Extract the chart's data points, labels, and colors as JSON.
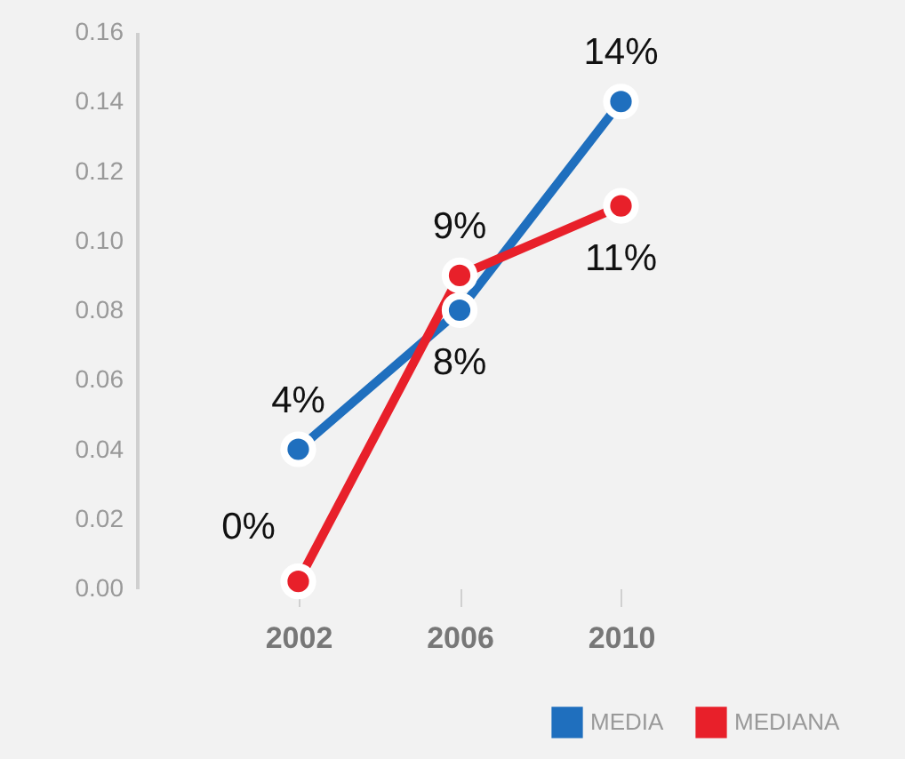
{
  "chart_data": {
    "type": "line",
    "categories": [
      "2002",
      "2006",
      "2010"
    ],
    "series": [
      {
        "name": "MEDIA",
        "color": "#1f6fbe",
        "values": [
          0.04,
          0.08,
          0.14
        ],
        "value_labels": [
          "4%",
          "8%",
          "14%"
        ]
      },
      {
        "name": "MEDIANA",
        "color": "#e8202a",
        "values": [
          0.002,
          0.09,
          0.11
        ],
        "value_labels": [
          "0%",
          "9%",
          "11%"
        ]
      }
    ],
    "ylim": [
      0,
      0.16
    ],
    "yticks": [
      {
        "value": 0,
        "label": "0.00"
      },
      {
        "value": 0.02,
        "label": "0.02"
      },
      {
        "value": 0.04,
        "label": "0.04"
      },
      {
        "value": 0.06,
        "label": "0.06"
      },
      {
        "value": 0.08,
        "label": "0.08"
      },
      {
        "value": 0.1,
        "label": "0.10"
      },
      {
        "value": 0.12,
        "label": "0.12"
      },
      {
        "value": 0.14,
        "label": "0.14"
      },
      {
        "value": 0.16,
        "label": "0.16"
      }
    ],
    "grid": false,
    "legend": "bottom right",
    "marker": "circle",
    "line_style": "solid"
  }
}
